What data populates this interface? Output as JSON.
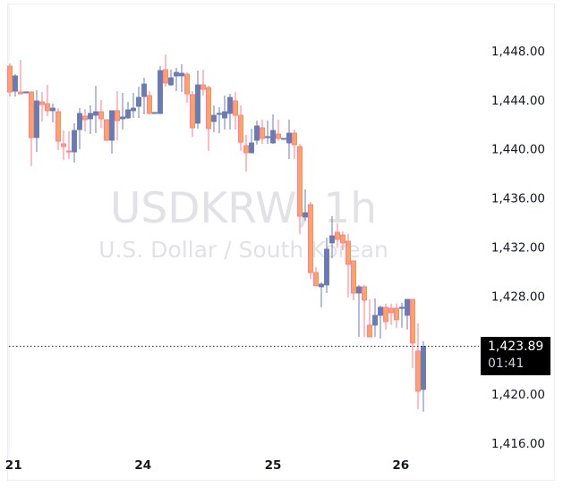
{
  "chart_data": {
    "type": "candlestick",
    "symbol_watermark": "USDKRW, 1h",
    "description_watermark": "U.S. Dollar / South Korean",
    "title": "",
    "xlabel": "",
    "ylabel": "",
    "ylim": [
      1415,
      1449
    ],
    "y_ticks": [
      "1,448.00",
      "1,444.00",
      "1,440.00",
      "1,436.00",
      "1,432.00",
      "1,428.00",
      "1,420.00",
      "1,416.00"
    ],
    "y_tick_values": [
      1448,
      1444,
      1440,
      1436,
      1432,
      1428,
      1420,
      1416
    ],
    "x_ticks": [
      {
        "label": "21",
        "candle": 0.7
      },
      {
        "label": "24",
        "candle": 24.8
      },
      {
        "label": "25",
        "candle": 49
      },
      {
        "label": "26",
        "candle": 72.8
      }
    ],
    "last_price": {
      "value": 1423.89,
      "label": "1,423.89",
      "countdown": "01:41"
    },
    "colors": {
      "up": "#6a7bb3",
      "down_fill": "#ffa464",
      "down_border": "#ff7b87",
      "price_box": "#000000"
    },
    "ohlc": [
      [
        1446.76,
        1446.98,
        1444.28,
        1444.65
      ],
      [
        1444.72,
        1446.1,
        1444.28,
        1445.96
      ],
      [
        1444.65,
        1447.27,
        1444.5,
        1444.5
      ],
      [
        1444.65,
        1444.65,
        1444.65,
        1444.66
      ],
      [
        1444.65,
        1444.65,
        1438.6,
        1440.93
      ],
      [
        1440.93,
        1444.79,
        1439.76,
        1443.92
      ],
      [
        1443.84,
        1444.65,
        1442.24,
        1443.63
      ],
      [
        1443.7,
        1445.23,
        1442.68,
        1443.12
      ],
      [
        1443.12,
        1443.7,
        1442.17,
        1443.33
      ],
      [
        1443.04,
        1443.33,
        1439.91,
        1440.64
      ],
      [
        1440.42,
        1441.51,
        1439.11,
        1440.2
      ],
      [
        1439.84,
        1441.44,
        1439.18,
        1439.8
      ],
      [
        1439.76,
        1442.1,
        1438.89,
        1441.51
      ],
      [
        1441.58,
        1443.33,
        1439.98,
        1442.9
      ],
      [
        1442.68,
        1443.26,
        1441.44,
        1442.39
      ],
      [
        1442.46,
        1443.55,
        1441.22,
        1442.9
      ],
      [
        1442.75,
        1445.16,
        1441.29,
        1443.04
      ],
      [
        1443.04,
        1443.99,
        1441.73,
        1442.46
      ],
      [
        1442.39,
        1442.39,
        1440.71,
        1440.71
      ],
      [
        1440.71,
        1443.12,
        1439.62,
        1443.12
      ],
      [
        1443.12,
        1444.72,
        1440.71,
        1442.31
      ],
      [
        1442.46,
        1444.57,
        1441.58,
        1442.61
      ],
      [
        1442.53,
        1443.84,
        1442.46,
        1443.19
      ],
      [
        1443.12,
        1444.57,
        1442.53,
        1443.33
      ],
      [
        1443.48,
        1445.08,
        1442.53,
        1444.21
      ],
      [
        1444.28,
        1445.81,
        1442.82,
        1445.3
      ],
      [
        1444.36,
        1444.72,
        1442.82,
        1442.9
      ],
      [
        1442.97,
        1442.97,
        1442.97,
        1442.98
      ],
      [
        1442.9,
        1446.76,
        1442.82,
        1446.4
      ],
      [
        1446.47,
        1447.71,
        1445.08,
        1445.38
      ],
      [
        1445.23,
        1446.47,
        1445.16,
        1445.81
      ],
      [
        1445.96,
        1446.61,
        1444.72,
        1446.25
      ],
      [
        1445.96,
        1446.91,
        1444.65,
        1446.18
      ],
      [
        1446.1,
        1446.25,
        1443.77,
        1444.5
      ],
      [
        1444.43,
        1444.72,
        1441.0,
        1441.73
      ],
      [
        1442.1,
        1446.4,
        1441.66,
        1445.23
      ],
      [
        1445.23,
        1446.47,
        1444.36,
        1444.87
      ],
      [
        1445.01,
        1445.16,
        1439.84,
        1441.66
      ],
      [
        1442.24,
        1443.55,
        1441.37,
        1442.75
      ],
      [
        1442.9,
        1443.41,
        1441.29,
        1442.91
      ],
      [
        1442.53,
        1444.36,
        1441.58,
        1443.04
      ],
      [
        1442.9,
        1444.5,
        1441.58,
        1444.21
      ],
      [
        1443.92,
        1444.65,
        1441.58,
        1442.75
      ],
      [
        1442.75,
        1443.55,
        1439.84,
        1440.56
      ],
      [
        1440.27,
        1441.15,
        1438.16,
        1439.69
      ],
      [
        1439.69,
        1441.66,
        1439.62,
        1440.49
      ],
      [
        1440.71,
        1442.31,
        1440.35,
        1441.88
      ],
      [
        1441.73,
        1442.39,
        1440.42,
        1440.86
      ],
      [
        1441.0,
        1442.31,
        1440.42,
        1441.01
      ],
      [
        1440.49,
        1442.82,
        1440.42,
        1441.51
      ],
      [
        1441.22,
        1442.39,
        1440.71,
        1440.86
      ],
      [
        1440.86,
        1440.86,
        1440.86,
        1440.87
      ],
      [
        1440.49,
        1442.39,
        1439.18,
        1441.29
      ],
      [
        1441.29,
        1441.58,
        1439.18,
        1440.35
      ],
      [
        1440.2,
        1440.42,
        1433.06,
        1434.51
      ],
      [
        1434.44,
        1436.7,
        1434.15,
        1434.8
      ],
      [
        1435.46,
        1435.68,
        1429.41,
        1429.92
      ],
      [
        1429.92,
        1430.36,
        1428.83,
        1428.83
      ],
      [
        1428.75,
        1429.12,
        1427.08,
        1428.97
      ],
      [
        1428.9,
        1432.76,
        1428.24,
        1431.82
      ],
      [
        1432.33,
        1434.51,
        1431.09,
        1432.91
      ],
      [
        1433.2,
        1433.93,
        1431.96,
        1432.62
      ],
      [
        1432.98,
        1433.27,
        1431.74,
        1432.33
      ],
      [
        1432.47,
        1433.06,
        1427.88,
        1430.58
      ],
      [
        1430.87,
        1430.87,
        1427.66,
        1428.24
      ],
      [
        1428.24,
        1428.9,
        1424.67,
        1428.75
      ],
      [
        1428.75,
        1428.9,
        1424.67,
        1427.66
      ],
      [
        1425.62,
        1427.73,
        1424.67,
        1424.67
      ],
      [
        1425.62,
        1427.81,
        1424.67,
        1426.42
      ],
      [
        1426.42,
        1427.22,
        1424.53,
        1427.08
      ],
      [
        1427.08,
        1427.37,
        1425.26,
        1425.91
      ],
      [
        1427.0,
        1427.37,
        1425.62,
        1426.64
      ],
      [
        1427.0,
        1427.37,
        1425.4,
        1426.06
      ],
      [
        1427.0,
        1427.44,
        1425.4,
        1427.08
      ],
      [
        1426.42,
        1427.73,
        1425.26,
        1427.73
      ],
      [
        1427.73,
        1427.73,
        1422.12,
        1424.16
      ],
      [
        1423.51,
        1425.77,
        1418.77,
        1420.23
      ],
      [
        1420.37,
        1424.31,
        1418.55,
        1423.89
      ]
    ]
  }
}
